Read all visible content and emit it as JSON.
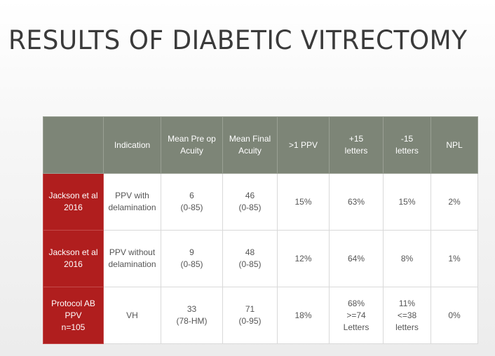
{
  "slide": {
    "title": "RESULTS OF DIABETIC VITRECTOMY"
  },
  "table": {
    "headers": [
      [
        ""
      ],
      [
        "Indication"
      ],
      [
        "Mean Pre op",
        "Acuity"
      ],
      [
        "Mean Final",
        "Acuity"
      ],
      [
        ">1 PPV"
      ],
      [
        "+15",
        "letters"
      ],
      [
        "-15",
        "letters"
      ],
      [
        "NPL"
      ]
    ],
    "rows": [
      {
        "study": [
          "Jackson et al",
          "2016"
        ],
        "indication": [
          "PPV with",
          "delamination"
        ],
        "pre_op": [
          "6",
          "(0-85)"
        ],
        "final": [
          "46",
          "(0-85)"
        ],
        "multi_ppv": [
          "15%"
        ],
        "plus15": [
          "63%"
        ],
        "minus15": [
          "15%"
        ],
        "npl": [
          "2%"
        ]
      },
      {
        "study": [
          "Jackson et al",
          "2016"
        ],
        "indication": [
          "PPV without",
          "delamination"
        ],
        "pre_op": [
          "9",
          "(0-85)"
        ],
        "final": [
          "48",
          "(0-85)"
        ],
        "multi_ppv": [
          "12%"
        ],
        "plus15": [
          "64%"
        ],
        "minus15": [
          "8%"
        ],
        "npl": [
          "1%"
        ]
      },
      {
        "study": [
          "Protocol AB",
          "PPV",
          "n=105"
        ],
        "indication": [
          "VH"
        ],
        "pre_op": [
          "33",
          "(78-HM)"
        ],
        "final": [
          "71",
          "(0-95)"
        ],
        "multi_ppv": [
          "18%"
        ],
        "plus15": [
          "68%",
          ">=74",
          "Letters"
        ],
        "minus15": [
          "11%",
          "<=38",
          "letters"
        ],
        "npl": [
          "0%"
        ]
      }
    ]
  },
  "colors": {
    "header_bg": "#7d8577",
    "study_bg": "#b01e1e",
    "title_text": "#3a3a3a"
  }
}
